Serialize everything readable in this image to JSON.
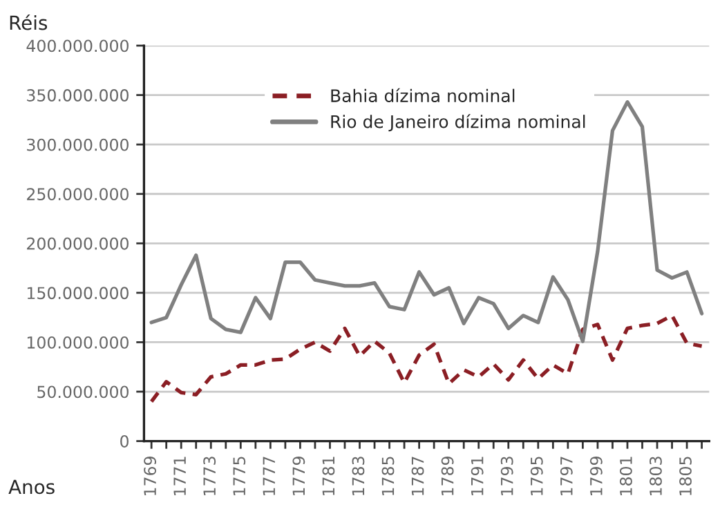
{
  "chart_data": {
    "type": "line",
    "xlabel": "Anos",
    "ylabel": "Réis",
    "x": [
      1769,
      1770,
      1771,
      1772,
      1773,
      1774,
      1775,
      1776,
      1777,
      1778,
      1779,
      1780,
      1781,
      1782,
      1783,
      1784,
      1785,
      1786,
      1787,
      1788,
      1789,
      1790,
      1791,
      1792,
      1793,
      1794,
      1795,
      1796,
      1797,
      1798,
      1799,
      1800,
      1801,
      1802,
      1803,
      1804,
      1805,
      1806
    ],
    "series": [
      {
        "name": "Bahia dízima nominal",
        "color": "#8b1e24",
        "line_style": "dashed",
        "values": [
          40000000,
          60000000,
          49000000,
          47000000,
          65000000,
          68000000,
          77000000,
          77000000,
          82000000,
          83000000,
          93000000,
          100000000,
          91000000,
          114000000,
          86000000,
          101000000,
          89000000,
          59000000,
          87000000,
          98000000,
          58000000,
          72000000,
          65000000,
          78000000,
          62000000,
          82000000,
          63000000,
          77000000,
          68000000,
          113000000,
          118000000,
          82000000,
          114000000,
          117000000,
          119000000,
          127000000,
          99000000,
          96000000
        ]
      },
      {
        "name": "Rio de Janeiro dízima nominal",
        "color": "#808080",
        "line_style": "solid",
        "values": [
          120000000,
          125000000,
          158000000,
          188000000,
          124000000,
          113000000,
          110000000,
          145000000,
          124000000,
          181000000,
          181000000,
          163000000,
          160000000,
          157000000,
          157000000,
          160000000,
          136000000,
          133000000,
          171000000,
          148000000,
          155000000,
          119000000,
          145000000,
          139000000,
          114000000,
          127000000,
          120000000,
          166000000,
          143000000,
          101000000,
          192000000,
          314000000,
          343000000,
          318000000,
          173000000,
          165000000,
          171000000,
          129000000
        ]
      }
    ],
    "xlim": [
      1768.5,
      1806.5
    ],
    "xticks": [
      1769,
      {
        "value": 1770,
        "label": null
      },
      1771,
      {
        "value": 1772,
        "label": null
      },
      1773,
      {
        "value": 1774,
        "label": null
      },
      1775,
      {
        "value": 1776,
        "label": null
      },
      1777,
      {
        "value": 1778,
        "label": null
      },
      1779,
      {
        "value": 1780,
        "label": null
      },
      1781,
      {
        "value": 1782,
        "label": null
      },
      1783,
      {
        "value": 1784,
        "label": null
      },
      1785,
      {
        "value": 1786,
        "label": null
      },
      1787,
      {
        "value": 1788,
        "label": null
      },
      1789,
      {
        "value": 1790,
        "label": null
      },
      1791,
      {
        "value": 1792,
        "label": null
      },
      1793,
      {
        "value": 1794,
        "label": null
      },
      1795,
      {
        "value": 1796,
        "label": null
      },
      1797,
      {
        "value": 1798,
        "label": null
      },
      1799,
      {
        "value": 1800,
        "label": null
      },
      1801,
      {
        "value": 1802,
        "label": null
      },
      1803,
      {
        "value": 1804,
        "label": null
      },
      1805,
      {
        "value": 1806,
        "label": null
      }
    ],
    "ylim": [
      0,
      400000000
    ],
    "yticks": [
      0,
      {
        "value": 50000000,
        "label": "50.000.000"
      },
      {
        "value": 100000000,
        "label": "100.000.000"
      },
      {
        "value": 150000000,
        "label": "150.000.000"
      },
      {
        "value": 200000000,
        "label": "200.000.000"
      },
      {
        "value": 250000000,
        "label": "250.000.000"
      },
      {
        "value": 300000000,
        "label": "300.000.000"
      },
      {
        "value": 350000000,
        "label": "350.000.000"
      },
      {
        "value": 400000000,
        "label": "400.000.000"
      }
    ],
    "grid": "y",
    "legend": "top left"
  }
}
